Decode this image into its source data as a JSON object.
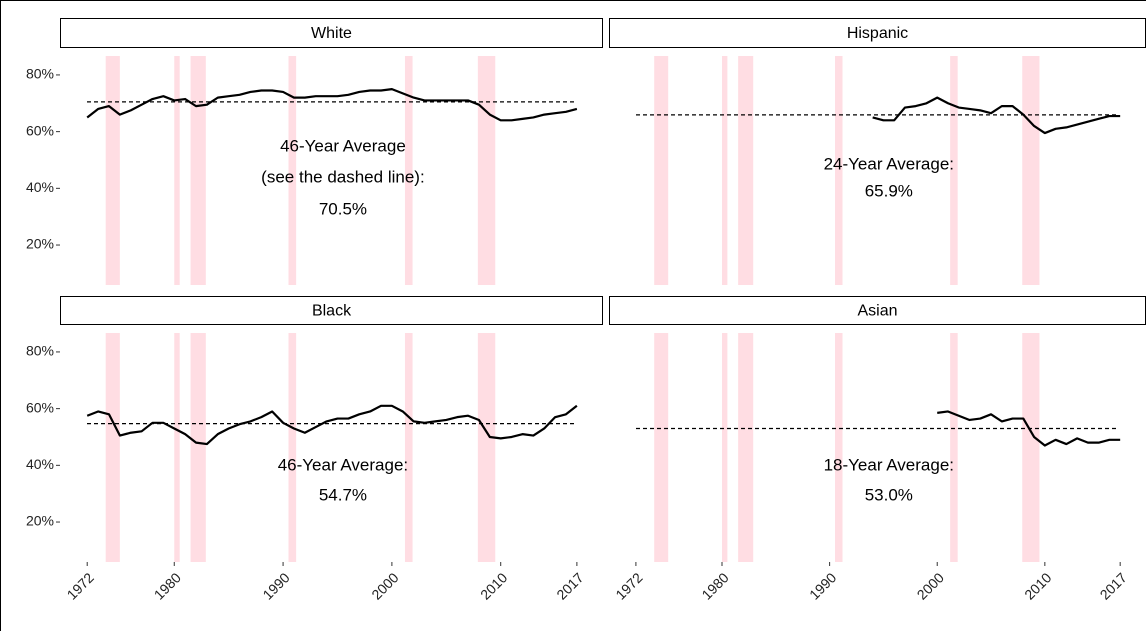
{
  "chart_data": [
    {
      "type": "line",
      "title": "White",
      "x": [
        1972,
        1973,
        1974,
        1975,
        1976,
        1977,
        1978,
        1979,
        1980,
        1981,
        1982,
        1983,
        1984,
        1985,
        1986,
        1987,
        1988,
        1989,
        1990,
        1991,
        1992,
        1993,
        1994,
        1995,
        1996,
        1997,
        1998,
        1999,
        2000,
        2001,
        2002,
        2003,
        2004,
        2005,
        2006,
        2007,
        2008,
        2009,
        2010,
        2011,
        2012,
        2013,
        2014,
        2015,
        2016,
        2017
      ],
      "values": [
        65,
        68,
        69,
        66,
        67.5,
        69.5,
        71.5,
        72.5,
        71,
        71.5,
        69,
        69.5,
        72,
        72.5,
        73,
        74,
        74.5,
        74.5,
        74,
        72,
        72,
        72.5,
        72.5,
        72.5,
        73,
        74,
        74.5,
        74.5,
        75,
        73.5,
        72,
        71,
        71,
        71,
        71,
        71,
        69.5,
        66,
        64,
        64,
        64.5,
        65,
        66,
        66.5,
        67,
        68
      ],
      "color": "#000000",
      "average": 70.5,
      "annotation": [
        "46-Year Average",
        "(see the dashed line):",
        "70.5%"
      ],
      "xlim": [
        1969.5,
        2019.4
      ],
      "ylim": [
        5.9,
        89.5
      ],
      "yticks": [
        {
          "value": 20,
          "label": "20%"
        },
        {
          "value": 40,
          "label": "40%"
        },
        {
          "value": 60,
          "label": "60%"
        },
        {
          "value": 80,
          "label": "80%"
        }
      ],
      "shaded_periods": [
        [
          1973.7,
          1975.0
        ],
        [
          1980.0,
          1980.5
        ],
        [
          1981.5,
          1982.9
        ],
        [
          1990.5,
          1991.2
        ],
        [
          2001.2,
          2001.9
        ],
        [
          2007.9,
          2009.5
        ]
      ],
      "shade_color": "#ffdde3"
    },
    {
      "type": "line",
      "title": "Hispanic",
      "x": [
        1994,
        1995,
        1996,
        1997,
        1998,
        1999,
        2000,
        2001,
        2002,
        2003,
        2004,
        2005,
        2006,
        2007,
        2008,
        2009,
        2010,
        2011,
        2012,
        2013,
        2014,
        2015,
        2016,
        2017
      ],
      "values": [
        65,
        64,
        64,
        68.5,
        69,
        70,
        72,
        70,
        68.5,
        68,
        67.5,
        66.5,
        69,
        69,
        66,
        62,
        59.5,
        61,
        61.5,
        62.5,
        63.5,
        64.5,
        65.5,
        65.5
      ],
      "color": "#000000",
      "average": 65.9,
      "annotation": [
        "24-Year Average:",
        "65.9%"
      ],
      "xlim": [
        1969.5,
        2019.4
      ],
      "ylim": [
        5.9,
        89.5
      ],
      "shaded_periods": [
        [
          1973.7,
          1975.0
        ],
        [
          1980.0,
          1980.5
        ],
        [
          1981.5,
          1982.9
        ],
        [
          1990.5,
          1991.2
        ],
        [
          2001.2,
          2001.9
        ],
        [
          2007.9,
          2009.5
        ]
      ],
      "shade_color": "#ffdde3"
    },
    {
      "type": "line",
      "title": "Black",
      "x": [
        1972,
        1973,
        1974,
        1975,
        1976,
        1977,
        1978,
        1979,
        1980,
        1981,
        1982,
        1983,
        1984,
        1985,
        1986,
        1987,
        1988,
        1989,
        1990,
        1991,
        1992,
        1993,
        1994,
        1995,
        1996,
        1997,
        1998,
        1999,
        2000,
        2001,
        2002,
        2003,
        2004,
        2005,
        2006,
        2007,
        2008,
        2009,
        2010,
        2011,
        2012,
        2013,
        2014,
        2015,
        2016,
        2017
      ],
      "values": [
        57.5,
        59,
        58,
        50.5,
        51.5,
        52,
        55,
        55,
        53,
        51,
        48,
        47.5,
        51,
        53,
        54.5,
        55.5,
        57,
        59,
        55,
        53,
        51.5,
        53.5,
        55.5,
        56.5,
        56.5,
        58,
        59,
        61,
        61,
        59,
        55.5,
        55,
        55.5,
        56,
        57,
        57.5,
        56,
        50,
        49.5,
        50,
        51,
        50.5,
        53,
        57,
        58,
        61
      ],
      "color": "#000000",
      "average": 54.7,
      "annotation": [
        "46-Year Average:",
        "54.7%"
      ],
      "xlim": [
        1969.5,
        2019.4
      ],
      "ylim": [
        5.9,
        89.5
      ],
      "xticks": [
        1972,
        1980,
        1990,
        2000,
        2010,
        2017
      ],
      "yticks": [
        {
          "value": 20,
          "label": "20%"
        },
        {
          "value": 40,
          "label": "40%"
        },
        {
          "value": 60,
          "label": "60%"
        },
        {
          "value": 80,
          "label": "80%"
        }
      ],
      "shaded_periods": [
        [
          1973.7,
          1975.0
        ],
        [
          1980.0,
          1980.5
        ],
        [
          1981.5,
          1982.9
        ],
        [
          1990.5,
          1991.2
        ],
        [
          2001.2,
          2001.9
        ],
        [
          2007.9,
          2009.5
        ]
      ],
      "shade_color": "#ffdde3"
    },
    {
      "type": "line",
      "title": "Asian",
      "x": [
        2000,
        2001,
        2002,
        2003,
        2004,
        2005,
        2006,
        2007,
        2008,
        2009,
        2010,
        2011,
        2012,
        2013,
        2014,
        2015,
        2016,
        2017
      ],
      "values": [
        58.5,
        59,
        57.5,
        56,
        56.5,
        58,
        55.5,
        56.5,
        56.5,
        50,
        47,
        49,
        47.5,
        49.5,
        48,
        48,
        49,
        49
      ],
      "color": "#000000",
      "average": 53.0,
      "annotation": [
        "18-Year Average:",
        "53.0%"
      ],
      "xlim": [
        1969.5,
        2019.4
      ],
      "ylim": [
        5.9,
        89.5
      ],
      "xticks": [
        1972,
        1980,
        1990,
        2000,
        2010,
        2017
      ],
      "shaded_periods": [
        [
          1973.7,
          1975.0
        ],
        [
          1980.0,
          1980.5
        ],
        [
          1981.5,
          1982.9
        ],
        [
          1990.5,
          1991.2
        ],
        [
          2001.2,
          2001.9
        ],
        [
          2007.9,
          2009.5
        ]
      ],
      "shade_color": "#ffdde3"
    }
  ]
}
